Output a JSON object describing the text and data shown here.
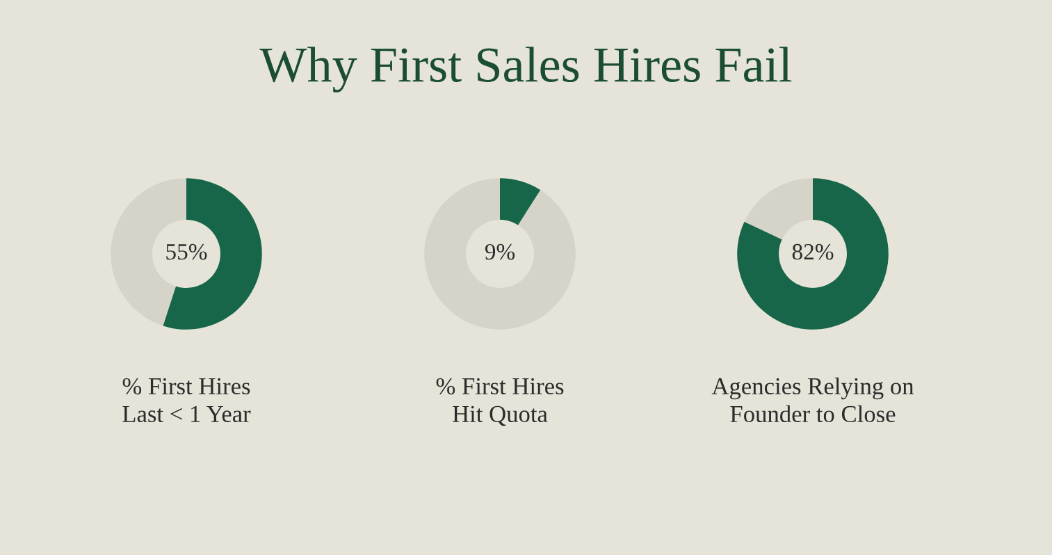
{
  "chart_data": [
    {
      "type": "other",
      "title": "Why First Sales Hires Fail"
    },
    {
      "type": "donut",
      "categories": [
        null,
        null
      ],
      "values": [
        55,
        45
      ],
      "colors": [
        "#17664a",
        "#d6d4c8"
      ],
      "value_labels": [
        "55%",
        null
      ],
      "xlabel": "% First Hires\nLast < 1 Year"
    },
    {
      "type": "donut",
      "categories": [
        null,
        null
      ],
      "values": [
        9,
        91
      ],
      "colors": [
        "#17664a",
        "#d6d4c8"
      ],
      "value_labels": [
        "9%",
        null
      ],
      "xlabel": "% First Hires\nHit Quota"
    },
    {
      "type": "donut",
      "categories": [
        null,
        null
      ],
      "values": [
        82,
        18
      ],
      "colors": [
        "#17664a",
        "#d6d4c8"
      ],
      "value_labels": [
        "82%",
        null
      ],
      "xlabel": "Agencies Relying on\nFounder to Close"
    }
  ]
}
